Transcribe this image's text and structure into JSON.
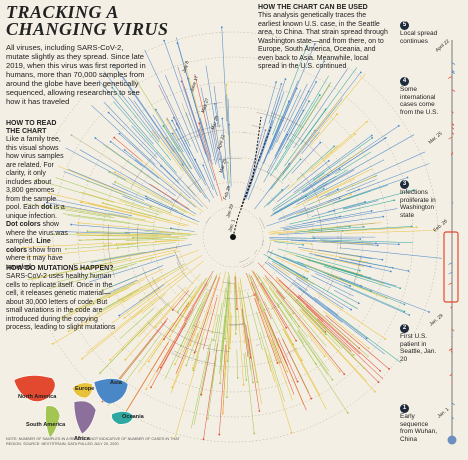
{
  "title": "TRACKING A CHANGING VIRUS",
  "intro": "All viruses, including SARS-CoV-2, mutate slightly as they spread. Since late 2019, when this virus was first reported in humans, more than 70,000 samples from around the globe have been genetically sequenced, allowing researchers to see how it has traveled",
  "how_to_read": {
    "heading": "HOW TO READ THE CHART",
    "body_1": "Like a family tree, this visual shows how virus samples are related. For clarity, it only includes about 3,800 genomes from the sample pool. Each",
    "dot_word": "dot",
    "body_2": "is a unique infection.",
    "dot_colors": "Dot colors",
    "body_3": "show where the virus was sampled.",
    "line_colors": "Line colors",
    "body_4": "show from where it may have traveled"
  },
  "mutations": {
    "heading": "HOW DO MUTATIONS HAPPEN?",
    "body": "SARS-CoV-2 uses healthy human cells to replicate itself. Once in the cell, it releases genetic material—about 30,000 letters of code. But small variations in the code are introduced during the copying process, leading to slight mutations"
  },
  "how_used": {
    "heading": "HOW THE CHART CAN BE USED",
    "body": "This analysis genetically traces the earliest known U.S. case, in the Seattle area, to China. That strain spread through Washington state—and from there, on to Europe, South America, Oceania, and even back to Asia. Meanwhile, local spread in the U.S. continued"
  },
  "date_labels": [
    "July 8",
    "June 17",
    "May 27",
    "Mar 20",
    "April 22",
    "Mar 25",
    "Feb 26",
    "Jan 29",
    "Jan. 1"
  ],
  "regions": {
    "north_america": "North America",
    "south_america": "South America",
    "europe": "Europe",
    "africa": "Africa",
    "asia": "Asia",
    "oceania": "Oceania"
  },
  "colors": {
    "north_america": "#e2492f",
    "south_america": "#a3c653",
    "europe": "#e8c23a",
    "africa": "#8d6f9c",
    "asia": "#4a87c7",
    "oceania": "#2ea8a0",
    "background": "#f4efe4"
  },
  "steps": [
    {
      "num": "1",
      "text": "Early sequence from Wuhan, China",
      "date": "Jan. 1"
    },
    {
      "num": "2",
      "text": "First U.S. patient in Seattle, Jan. 20",
      "date": "Jan. 29"
    },
    {
      "num": "3",
      "text": "Infections proliferate in Washington state",
      "date": "Feb. 26"
    },
    {
      "num": "4",
      "text": "Some international cases come from the U.S.",
      "date": "Mar. 25"
    },
    {
      "num": "5",
      "text": "Local spread continues",
      "date": "April 22"
    }
  ],
  "note": "NOTE: NUMBER OF SAMPLES IN A REGION IS NOT INDICATIVE OF NUMBER OF CASES IN THAT REGION. SOURCE: NEXTSTRAIN; DATA PULLED JULY 20, 2020"
}
